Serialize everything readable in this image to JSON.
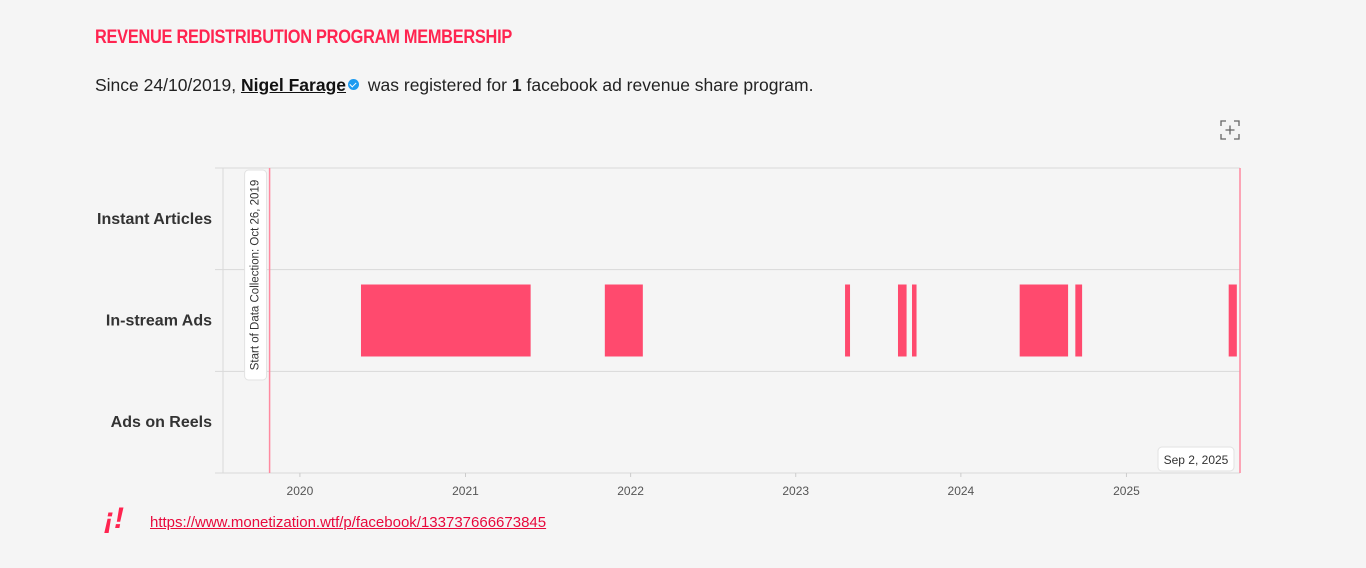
{
  "header": {
    "title": "REVENUE REDISTRIBUTION PROGRAM MEMBERSHIP"
  },
  "summary": {
    "prefix": "Since 24/10/2019,",
    "name": "Nigel Farage",
    "middle": "was registered for",
    "count": "1",
    "suffix": "facebook ad revenue share program.",
    "verified_icon": "verified-badge-icon"
  },
  "toolbar": {
    "expand_icon": "expand-icon"
  },
  "source": {
    "logo": "¡!",
    "link": "https://www.monetization.wtf/p/facebook/133737666673845"
  },
  "colors": {
    "accent": "#ff4a6e",
    "title": "#ff2450",
    "marker": "#ff8aa0",
    "link": "#e8093c"
  },
  "chart_data": {
    "type": "timeline",
    "categories": [
      "Instant Articles",
      "In-stream Ads",
      "Ads on Reels"
    ],
    "x_range": [
      "2019-07-15",
      "2025-09-09"
    ],
    "x_ticks": [
      "2020",
      "2021",
      "2022",
      "2023",
      "2024",
      "2025"
    ],
    "grid": true,
    "series": [
      {
        "category": "In-stream Ads",
        "intervals": [
          [
            "2020-05-15",
            "2021-05-25"
          ],
          [
            "2021-11-05",
            "2022-01-28"
          ],
          [
            "2023-04-20",
            "2023-05-01"
          ],
          [
            "2023-08-15",
            "2023-09-03"
          ],
          [
            "2023-09-15",
            "2023-09-25"
          ],
          [
            "2024-05-10",
            "2024-08-25"
          ],
          [
            "2024-09-10",
            "2024-09-25"
          ],
          [
            "2025-08-15",
            "2025-09-02"
          ]
        ]
      }
    ],
    "annotations": [
      {
        "date": "2019-10-26",
        "label": "Start of Data Collection: Oct 26, 2019"
      },
      {
        "date": "2025-09-02",
        "label": "Sep 2, 2025"
      }
    ]
  }
}
